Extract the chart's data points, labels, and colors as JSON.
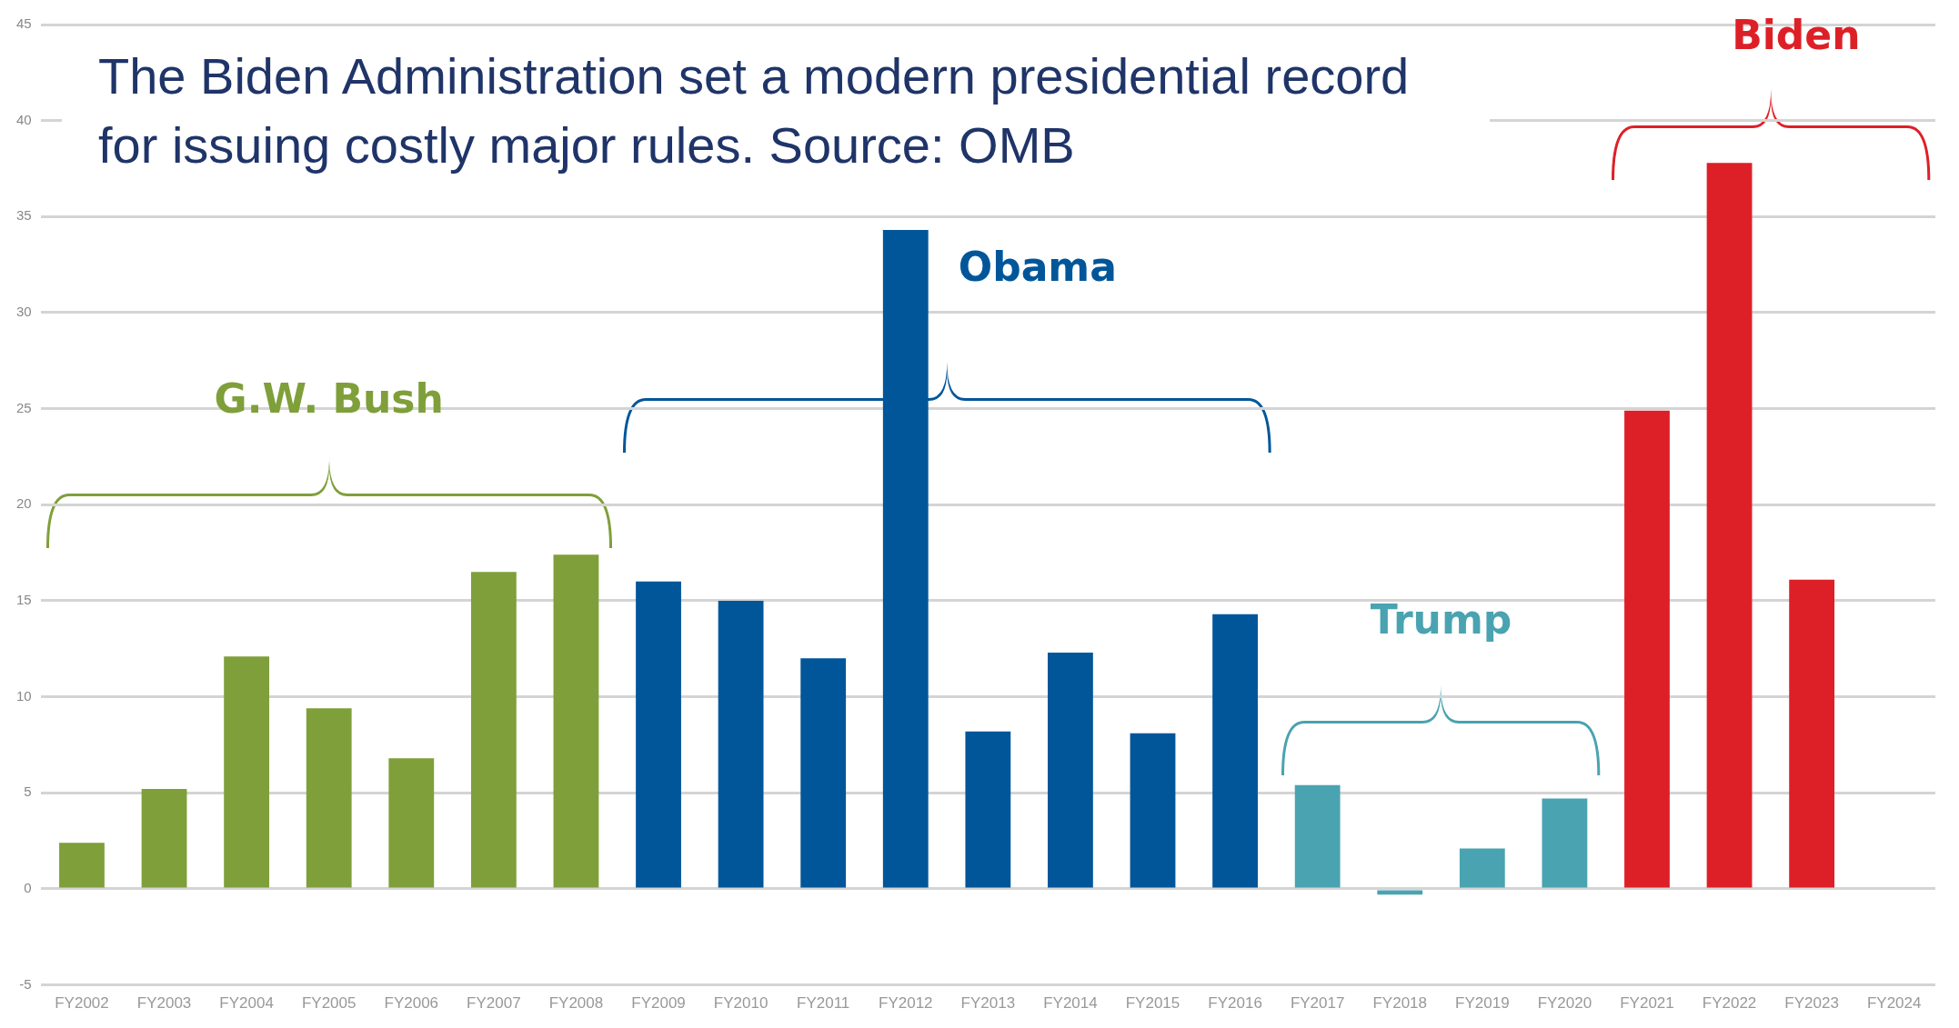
{
  "chart_data": {
    "type": "bar",
    "title": "The Biden Administration set a modern presidential record for issuing costly major rules. Source: OMB",
    "categories": [
      "FY2002",
      "FY2003",
      "FY2004",
      "FY2005",
      "FY2006",
      "FY2007",
      "FY2008",
      "FY2009",
      "FY2010",
      "FY2011",
      "FY2012",
      "FY2013",
      "FY2014",
      "FY2015",
      "FY2016",
      "FY2017",
      "FY2018",
      "FY2019",
      "FY2020",
      "FY2021",
      "FY2022",
      "FY2023",
      "FY2024"
    ],
    "values": [
      2.4,
      5.2,
      12.1,
      9.4,
      6.8,
      16.5,
      17.4,
      16.0,
      15.0,
      12.0,
      34.3,
      8.2,
      12.3,
      8.1,
      14.3,
      5.4,
      -0.3,
      2.1,
      4.7,
      24.9,
      37.8,
      16.1,
      null
    ],
    "colors": [
      "#7f9f3a",
      "#7f9f3a",
      "#7f9f3a",
      "#7f9f3a",
      "#7f9f3a",
      "#7f9f3a",
      "#7f9f3a",
      "#01569a",
      "#01569a",
      "#01569a",
      "#01569a",
      "#01569a",
      "#01569a",
      "#01569a",
      "#01569a",
      "#4aa3b0",
      "#4aa3b0",
      "#4aa3b0",
      "#4aa3b0",
      "#dd2027",
      "#dd2027",
      "#dd2027",
      "#dd2027"
    ],
    "ylim": [
      -5,
      45
    ],
    "yticks": [
      -5,
      0,
      5,
      10,
      15,
      20,
      25,
      30,
      35,
      40,
      45
    ],
    "grid": "y",
    "legend": false,
    "annotations": [
      "G.W. Bush",
      "Obama",
      "Trump",
      "Biden"
    ]
  }
}
